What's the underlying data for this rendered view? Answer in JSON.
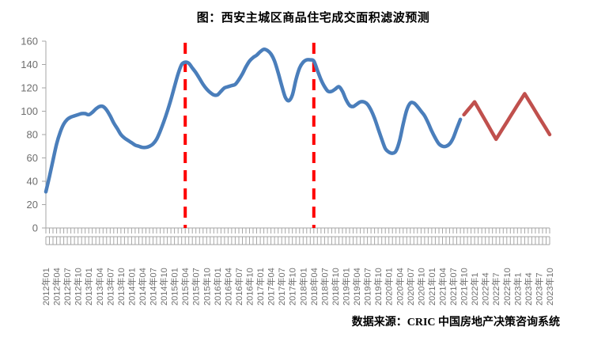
{
  "title": "图：西安主城区商品住宅成交面积滤波预测",
  "source": "数据来源：CRIC 中国房地产决策咨询系统",
  "colors": {
    "actual_line": "#4a7ebb",
    "forecast_line": "#c0504d",
    "event_line": "#fe0000",
    "axis": "#a6a6a6",
    "tick_label": "#6e6e6e"
  },
  "chart_data": {
    "type": "line",
    "title": "图：西安主城区商品住宅成交面积滤波预测",
    "xlabel": "",
    "ylabel": "",
    "ylim": [
      0,
      160
    ],
    "y_ticks": [
      0,
      20,
      40,
      60,
      80,
      100,
      120,
      140,
      160
    ],
    "grid": false,
    "legend_position": "none",
    "n_months": 142,
    "x_start_month": "2012年01",
    "x_end_month": "2023年10",
    "x_tick_every_months": 3,
    "x_tick_labels": [
      "2012年01",
      "2012年04",
      "2012年07",
      "2012年10",
      "2013年01",
      "2013年04",
      "2013年07",
      "2013年10",
      "2014年01",
      "2014年04",
      "2014年07",
      "2014年10",
      "2015年01",
      "2015年04",
      "2015年07",
      "2015年10",
      "2016年01",
      "2016年04",
      "2016年07",
      "2016年10",
      "2017年01",
      "2017年04",
      "2017年07",
      "2017年10",
      "2018年01",
      "2018年04",
      "2018年07",
      "2018年10",
      "2019年01",
      "2019年04",
      "2019年07",
      "2019年10",
      "2020年01",
      "2020年04",
      "2020年07",
      "2020年10",
      "2021年01",
      "2021年04",
      "2021年07",
      "2021年10",
      "2022年1",
      "2022年4",
      "2022年7",
      "2022年10",
      "2023年1",
      "2023年4",
      "2023年7",
      "2023年10"
    ],
    "series": [
      {
        "name": "actual",
        "color": "#4a7ebb",
        "smooth": true,
        "start_index": 0,
        "values": [
          31,
          44,
          58,
          72,
          82,
          89,
          93,
          95,
          96,
          97,
          98,
          98,
          97,
          99,
          102,
          104,
          104,
          101,
          96,
          90,
          85,
          80,
          77,
          75,
          73,
          71,
          70,
          69,
          69,
          70,
          72,
          76,
          83,
          91,
          100,
          110,
          121,
          132,
          140,
          142,
          141,
          137,
          133,
          128,
          123,
          119,
          116,
          114,
          114,
          117,
          120,
          121,
          122,
          123,
          127,
          132,
          138,
          143,
          146,
          148,
          151,
          153,
          152,
          149,
          143,
          133,
          122,
          112,
          109,
          114,
          127,
          137,
          142,
          144,
          144,
          143,
          135,
          127,
          121,
          117,
          117,
          119,
          121,
          117,
          110,
          105,
          104,
          106,
          108,
          108,
          106,
          101,
          94,
          85,
          76,
          68,
          65,
          64,
          66,
          75,
          89,
          101,
          107,
          107,
          104,
          100,
          96,
          90,
          83,
          77,
          72,
          70,
          70,
          72,
          77,
          85,
          93
        ]
      },
      {
        "name": "forecast",
        "color": "#c0504d",
        "smooth": false,
        "start_index": 117,
        "values": [
          97,
          100.7,
          104.3,
          108,
          102.7,
          97.3,
          92,
          86.7,
          81.3,
          76,
          80.9,
          85.8,
          90.6,
          95.5,
          100.4,
          105.3,
          110.1,
          115,
          110,
          105,
          100,
          95,
          90,
          85,
          80
        ]
      }
    ],
    "event_lines": [
      {
        "at_label": "2015年04",
        "month_index": 39,
        "color": "#fe0000",
        "style": "dashed"
      },
      {
        "at_label": "2018年04",
        "month_index": 75,
        "color": "#fe0000",
        "style": "dashed"
      }
    ]
  }
}
